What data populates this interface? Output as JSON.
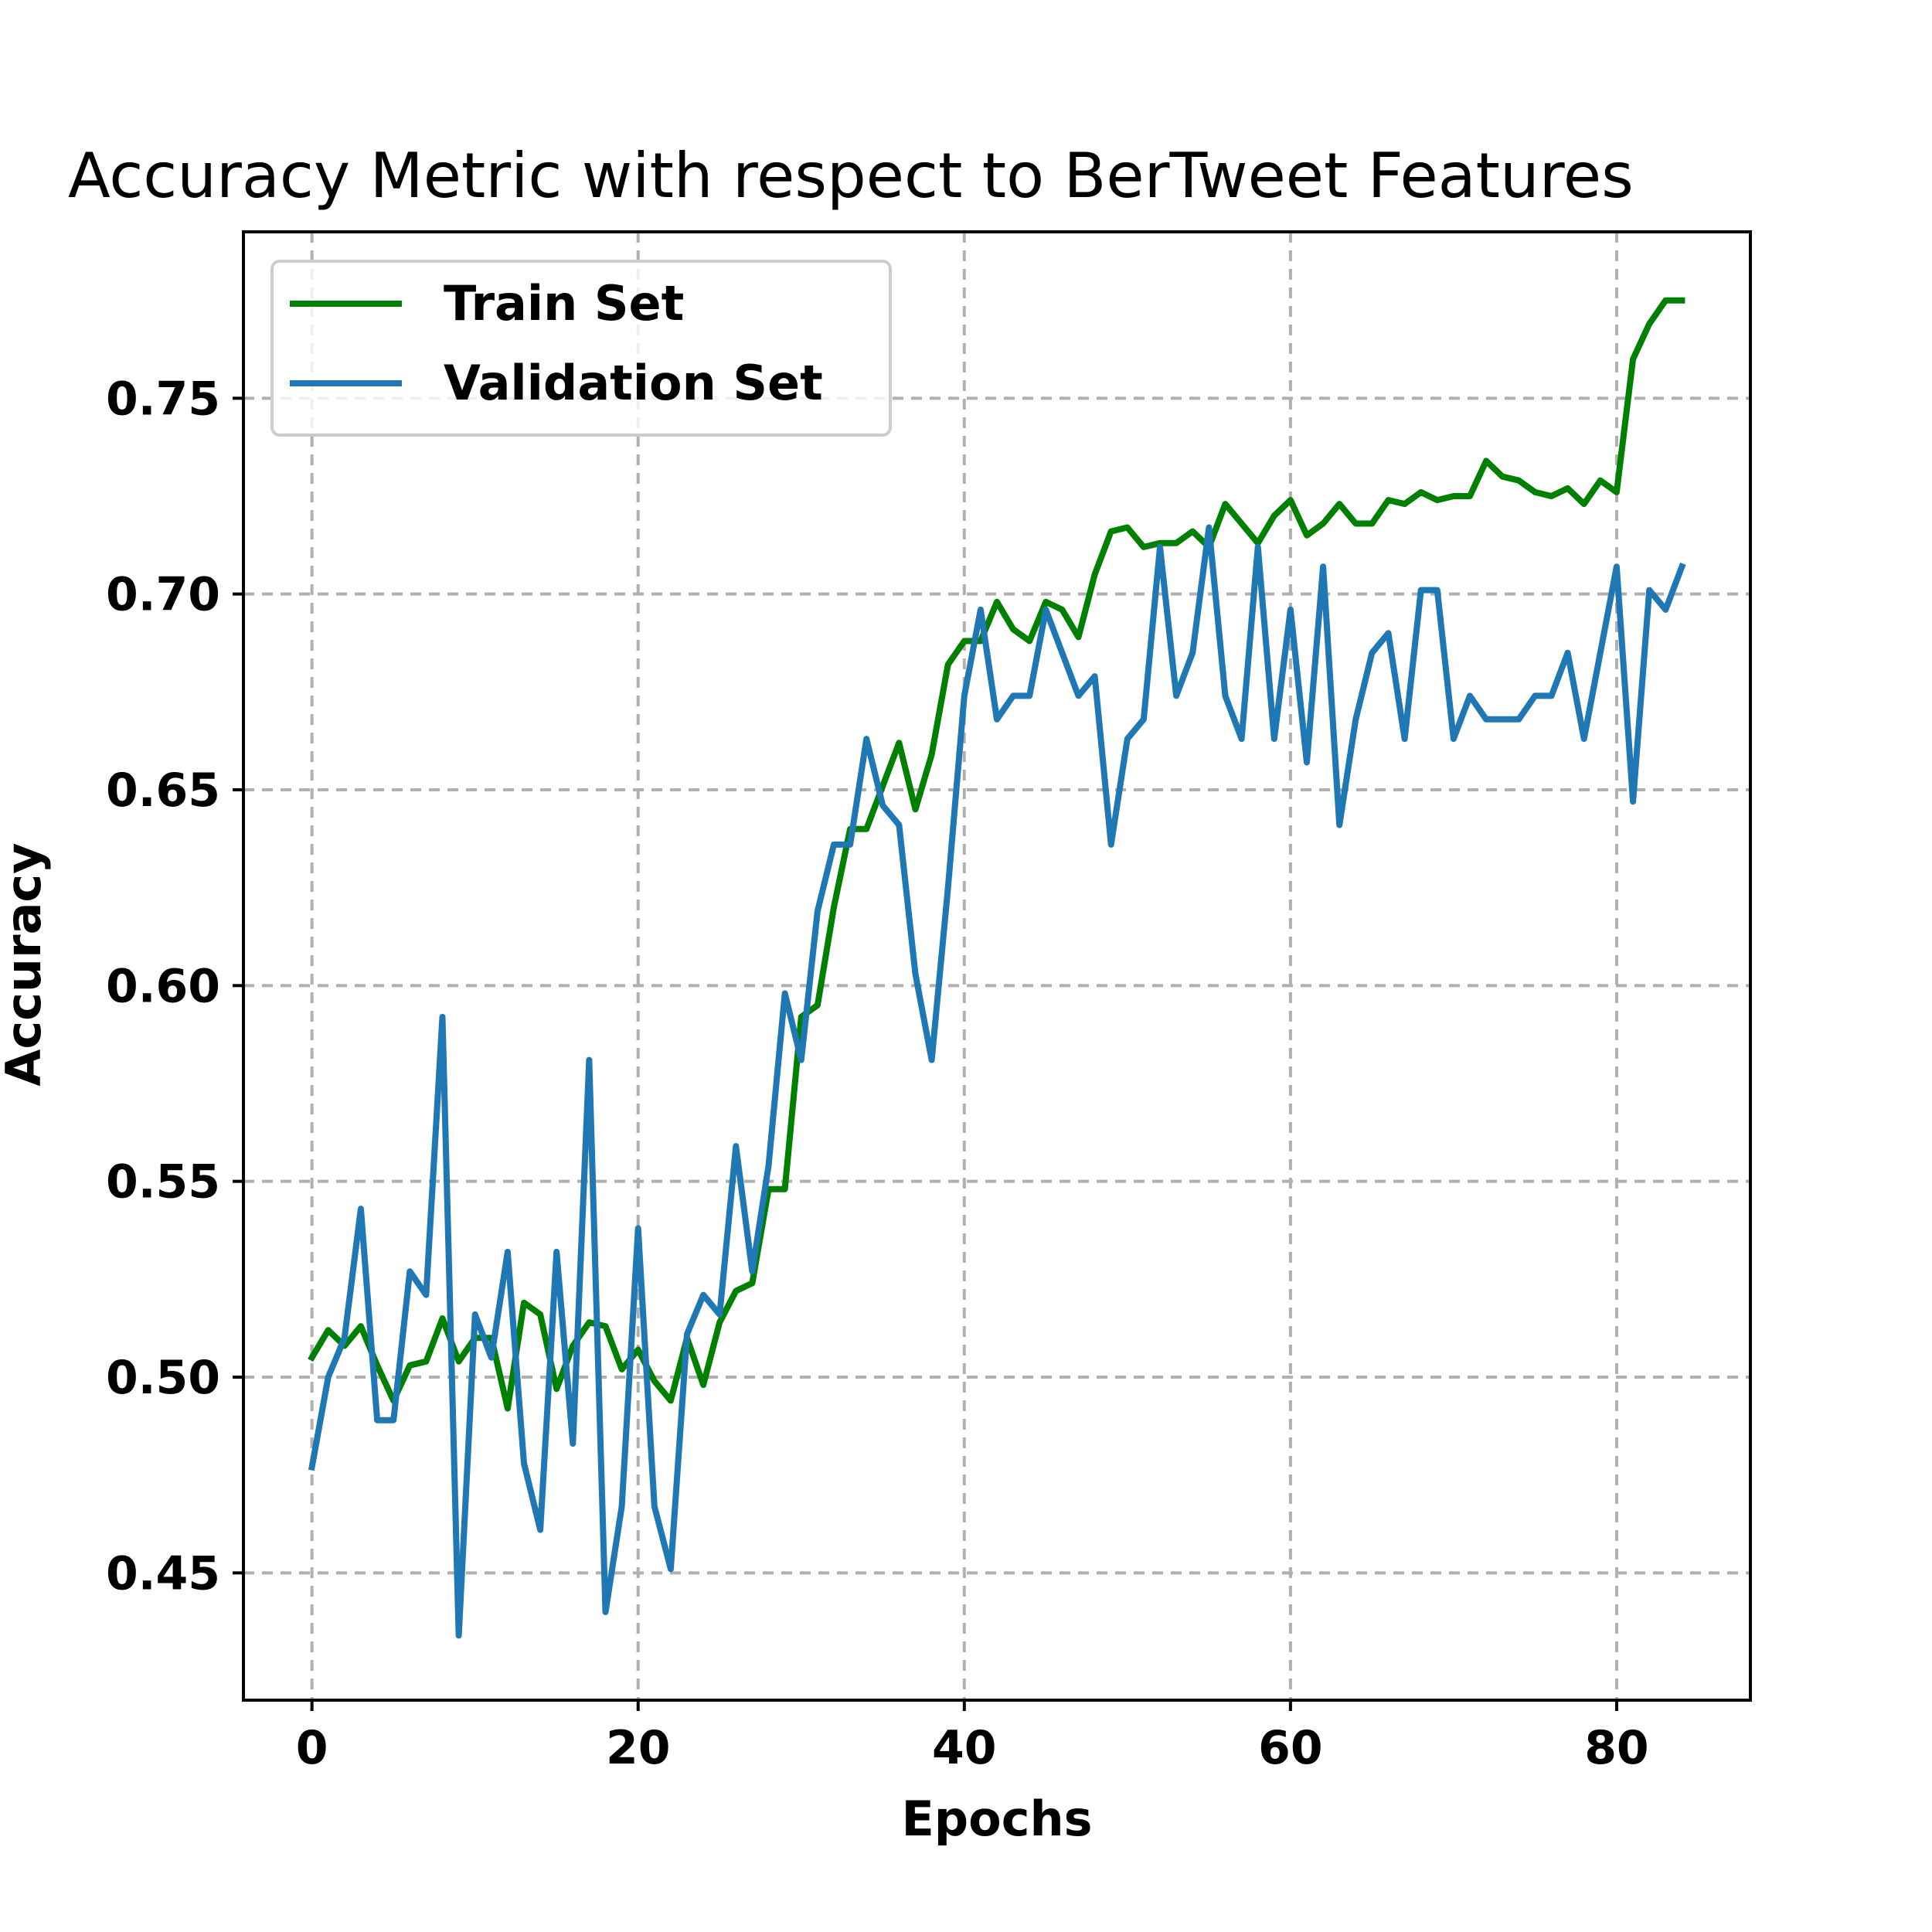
{
  "chart_data": {
    "type": "line",
    "title": "Accuracy Metric with respect to BerTweet Features",
    "xlabel": "Epochs",
    "ylabel": "Accuracy",
    "xlim": [
      -4.2,
      88.2
    ],
    "ylim": [
      0.4175,
      0.7925
    ],
    "xticks": [
      0,
      20,
      40,
      60,
      80
    ],
    "xtick_labels": [
      "0",
      "20",
      "40",
      "60",
      "80"
    ],
    "yticks": [
      0.45,
      0.5,
      0.55,
      0.6,
      0.65,
      0.7,
      0.75
    ],
    "ytick_labels": [
      "0.45",
      "0.50",
      "0.55",
      "0.60",
      "0.65",
      "0.70",
      "0.75"
    ],
    "grid": true,
    "legend_position": "top-left",
    "x": [
      0,
      1,
      2,
      3,
      4,
      5,
      6,
      7,
      8,
      9,
      10,
      11,
      12,
      13,
      14,
      15,
      16,
      17,
      18,
      19,
      20,
      21,
      22,
      23,
      24,
      25,
      26,
      27,
      28,
      29,
      30,
      31,
      32,
      33,
      34,
      35,
      36,
      37,
      38,
      39,
      40,
      41,
      42,
      43,
      44,
      45,
      46,
      47,
      48,
      49,
      50,
      51,
      52,
      53,
      54,
      55,
      56,
      57,
      58,
      59,
      60,
      61,
      62,
      63,
      64,
      65,
      66,
      67,
      68,
      69,
      70,
      71,
      72,
      73,
      74,
      75,
      76,
      77,
      78,
      79,
      80,
      81,
      82,
      83,
      84
    ],
    "series": [
      {
        "name": "Train Set",
        "color": "#008000",
        "values": [
          0.505,
          0.512,
          0.508,
          0.513,
          0.503,
          0.494,
          0.503,
          0.504,
          0.515,
          0.504,
          0.51,
          0.51,
          0.492,
          0.519,
          0.516,
          0.497,
          0.508,
          0.514,
          0.513,
          0.502,
          0.507,
          0.499,
          0.494,
          0.51,
          0.498,
          0.514,
          0.522,
          0.524,
          0.548,
          0.548,
          0.592,
          0.595,
          0.62,
          0.64,
          0.64,
          0.651,
          0.662,
          0.645,
          0.659,
          0.682,
          0.688,
          0.688,
          0.698,
          0.691,
          0.688,
          0.698,
          0.696,
          0.689,
          0.705,
          0.716,
          0.717,
          0.712,
          0.713,
          0.713,
          0.716,
          0.712,
          0.723,
          0.718,
          0.713,
          0.72,
          0.724,
          0.715,
          0.718,
          0.723,
          0.718,
          0.718,
          0.724,
          0.723,
          0.726,
          0.724,
          0.725,
          0.725,
          0.734,
          0.73,
          0.729,
          0.726,
          0.725,
          0.727,
          0.723,
          0.729,
          0.726,
          0.76,
          0.769,
          0.775,
          0.775
        ]
      },
      {
        "name": "Validation Set",
        "color": "#1f77b4",
        "values": [
          0.477,
          0.5,
          0.51,
          0.543,
          0.489,
          0.489,
          0.527,
          0.521,
          0.592,
          0.434,
          0.516,
          0.505,
          0.532,
          0.478,
          0.461,
          0.532,
          0.483,
          0.581,
          0.44,
          0.467,
          0.538,
          0.467,
          0.451,
          0.511,
          0.521,
          0.516,
          0.559,
          0.527,
          0.554,
          0.598,
          0.581,
          0.619,
          0.636,
          0.636,
          0.663,
          0.646,
          0.641,
          0.603,
          0.581,
          0.625,
          0.674,
          0.696,
          0.668,
          0.674,
          0.674,
          0.696,
          0.685,
          0.674,
          0.679,
          0.636,
          0.663,
          0.668,
          0.712,
          0.674,
          0.685,
          0.717,
          0.674,
          0.663,
          0.712,
          0.663,
          0.696,
          0.657,
          0.707,
          0.641,
          0.668,
          0.685,
          0.69,
          0.663,
          0.701,
          0.701,
          0.663,
          0.674,
          0.668,
          0.668,
          0.668,
          0.674,
          0.674,
          0.685,
          0.663,
          0.685,
          0.707,
          0.647,
          0.701,
          0.696,
          0.707
        ]
      }
    ]
  }
}
